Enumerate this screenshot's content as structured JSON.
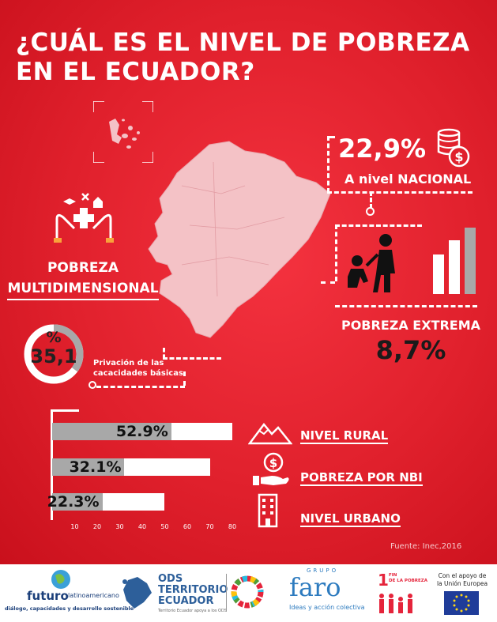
{
  "title_line1": "¿CUÁL ES EL NIVEL DE POBREZA",
  "title_line2": "EN EL ECUADOR?",
  "national": {
    "value": "22,9%",
    "label_prefix": "A nivel ",
    "label_emph": "NACIONAL"
  },
  "multidimensional": {
    "line1": "POBREZA",
    "line2": "MULTIDIMENSIONAL"
  },
  "gauge": {
    "symbol": "%",
    "value": "35,1",
    "fraction": 0.351,
    "caption_line1": "Privación de las",
    "caption_line2": "cacacidades básicas"
  },
  "extreme": {
    "label": "POBREZA EXTREMA",
    "value": "8,7%"
  },
  "chart_data": {
    "type": "bar",
    "orientation": "horizontal",
    "categories": [
      "NIVEL RURAL",
      "POBREZA POR NBI",
      "NIVEL URBANO"
    ],
    "values": [
      52.9,
      32.1,
      22.3
    ],
    "value_labels": [
      "52.9%",
      "32.1%",
      "22.3%"
    ],
    "xlim": [
      0,
      80
    ],
    "xticks": [
      "10",
      "20",
      "30",
      "40",
      "50",
      "60",
      "70",
      "80"
    ]
  },
  "legend": {
    "rural": "NIVEL RURAL",
    "nbi": "POBREZA POR NBI",
    "urban": "NIVEL URBANO"
  },
  "source": "Fuente: Inec,2016",
  "footer": {
    "futuro_name": "futuro",
    "futuro_sub": "latinoamericano",
    "futuro_tag": "diálogo, capacidades y desarrollo sostenible",
    "ods_line1": "ODS",
    "ods_line2": "TERRITORIO",
    "ods_line3": "ECUADOR",
    "ods_small": "Territorio Ecuador apoya a los ODS",
    "faro_top": "GRUPO",
    "faro_name": "faro",
    "faro_tag": "Ideas y acción colectiva",
    "sdg_num": "1",
    "sdg_text1": "FIN",
    "sdg_text2": "DE LA POBREZA",
    "eu_line1": "Con el apoyo de",
    "eu_line2": "la Unión Europea"
  },
  "colors": {
    "background": "#e0202c",
    "bar_fill": "#a8a8a8",
    "bar_track": "#ffffff"
  }
}
